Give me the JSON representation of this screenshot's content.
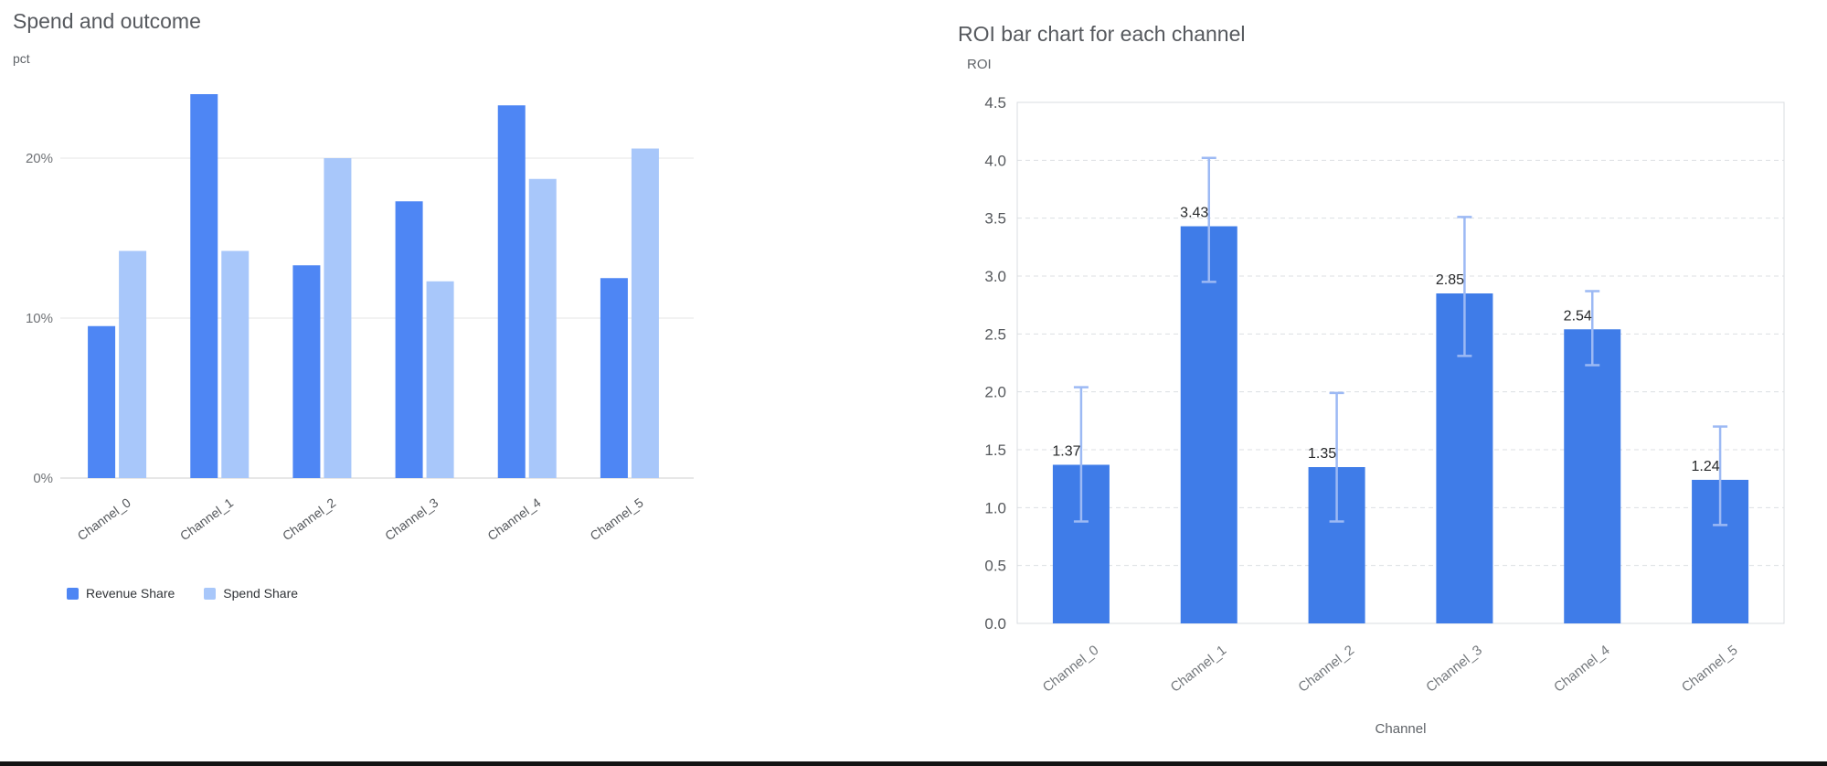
{
  "layout": {
    "background": "#ffffff",
    "bottom_rule_color": "#131313"
  },
  "chart_data": [
    {
      "type": "bar",
      "title": "Spend and outcome",
      "ylabel": "pct",
      "xlabel": "",
      "categories": [
        "Channel_0",
        "Channel_1",
        "Channel_2",
        "Channel_3",
        "Channel_4",
        "Channel_5"
      ],
      "series": [
        {
          "name": "Revenue Share",
          "color": "#4e86f4",
          "values": [
            9.5,
            24.0,
            13.3,
            17.3,
            23.3,
            12.5
          ]
        },
        {
          "name": "Spend Share",
          "color": "#a8c7fa",
          "values": [
            14.2,
            14.2,
            20.0,
            12.3,
            18.7,
            20.6
          ]
        }
      ],
      "ylim": [
        0,
        25
      ],
      "yticks": [
        0,
        10,
        20
      ],
      "ytick_labels": [
        "0%",
        "10%",
        "20%"
      ],
      "grid": true,
      "legend_position": "bottom-left"
    },
    {
      "type": "bar",
      "title": "ROI bar chart for each channel",
      "ylabel": "ROI",
      "xlabel": "Channel",
      "categories": [
        "Channel_0",
        "Channel_1",
        "Channel_2",
        "Channel_3",
        "Channel_4",
        "Channel_5"
      ],
      "values": [
        1.37,
        3.43,
        1.35,
        2.85,
        2.54,
        1.24
      ],
      "data_labels": [
        "1.37",
        "3.43",
        "1.35",
        "2.85",
        "2.54",
        "1.24"
      ],
      "error_low": [
        0.88,
        2.95,
        0.88,
        2.31,
        2.23,
        0.85
      ],
      "error_high": [
        2.04,
        4.02,
        1.99,
        3.51,
        2.87,
        1.7
      ],
      "ylim": [
        0,
        4.5
      ],
      "yticks": [
        0,
        0.5,
        1,
        1.5,
        2,
        2.5,
        3,
        3.5,
        4,
        4.5
      ],
      "bar_color": "#3f7ce8",
      "error_color": "#9cb9f4",
      "plot_border_color": "#dadce0",
      "grid": "dashed",
      "legend_position": "none"
    }
  ]
}
